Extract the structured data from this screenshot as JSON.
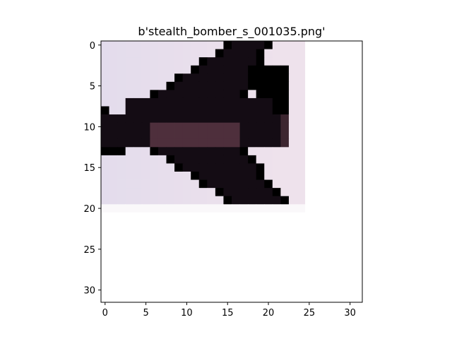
{
  "chart_data": {
    "type": "heatmap",
    "title": "b'stealth_bomber_s_001035.png'",
    "xlabel": "",
    "ylabel": "",
    "xlim": [
      -0.5,
      31.5
    ],
    "ylim": [
      31.5,
      -0.5
    ],
    "grid": false,
    "xticks": [
      0,
      5,
      10,
      15,
      20,
      25,
      30
    ],
    "yticks": [
      0,
      5,
      10,
      15,
      20,
      25,
      30
    ],
    "xtick_labels": [
      "0",
      "5",
      "10",
      "15",
      "20",
      "25",
      "30"
    ],
    "ytick_labels": [
      "0",
      "5",
      "10",
      "15",
      "20",
      "25",
      "30"
    ],
    "image_size": [
      32,
      32
    ],
    "content_rows": 20,
    "content_cols": 25,
    "background_color": "#ffffff",
    "colors": {
      "lavender": "#e3dcec",
      "light_pink": "#eee2ec",
      "silver": "#ccc4cc",
      "mauve": "#a08c9a",
      "dark_plum": "#3d2630",
      "black_plum": "#140c14",
      "body_brown": "#4e2f3c",
      "near_white": "#faf8fa"
    }
  }
}
